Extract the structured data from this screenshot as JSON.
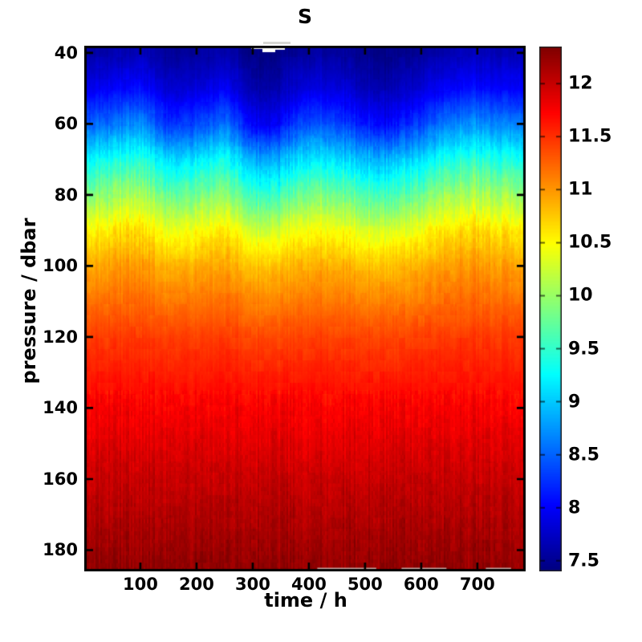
{
  "figure": {
    "title": "S",
    "xlabel": "time / h",
    "ylabel": "pressure / dbar",
    "background": "#ffffff"
  },
  "axes": {
    "xlim": [
      0,
      786
    ],
    "ylim": [
      38,
      186
    ],
    "y_axis_reversed_depth": true,
    "x_ticks": [
      100,
      200,
      300,
      400,
      500,
      600,
      700
    ],
    "y_ticks": [
      40,
      60,
      80,
      100,
      120,
      140,
      160,
      180
    ],
    "tick_direction": "in",
    "box": "on"
  },
  "colorbar": {
    "position": "right",
    "clim": [
      7.4,
      12.35
    ],
    "colormap": "jet",
    "ticks": [
      7.5,
      8,
      8.5,
      9,
      9.5,
      10,
      10.5,
      11,
      11.5,
      12
    ]
  },
  "chart_data": {
    "type": "heatmap",
    "title": "S",
    "xlabel": "time / h",
    "ylabel": "pressure / dbar",
    "legend": "none",
    "grid": "off",
    "colormap": "jet",
    "clim": [
      7.4,
      12.35
    ],
    "x": [
      0,
      50,
      100,
      150,
      200,
      250,
      300,
      340,
      390,
      440,
      490,
      540,
      590,
      640,
      690,
      740,
      786
    ],
    "y": [
      40,
      50,
      60,
      70,
      80,
      90,
      100,
      120,
      140,
      160,
      186
    ],
    "values": [
      [
        7.6,
        7.63,
        7.69,
        7.51,
        7.54,
        7.63,
        7.42,
        7.4,
        7.57,
        7.57,
        7.48,
        7.42,
        7.51,
        7.63,
        7.69,
        7.66,
        7.66
      ],
      [
        7.93,
        7.98,
        8.08,
        7.78,
        7.83,
        7.98,
        7.63,
        7.58,
        7.88,
        7.88,
        7.73,
        7.63,
        7.78,
        7.98,
        8.08,
        8.03,
        8.03
      ],
      [
        8.5,
        8.58,
        8.74,
        8.26,
        8.34,
        8.58,
        8.02,
        7.94,
        8.42,
        8.42,
        8.18,
        8.02,
        8.26,
        8.58,
        8.74,
        8.66,
        8.66
      ],
      [
        9.27,
        9.34,
        9.47,
        9.07,
        9.14,
        9.34,
        8.87,
        8.8,
        9.2,
        9.2,
        9.0,
        8.87,
        9.07,
        9.34,
        9.47,
        9.4,
        9.4
      ],
      [
        9.93,
        9.99,
        10.12,
        9.74,
        9.81,
        9.99,
        9.56,
        9.5,
        9.87,
        9.87,
        9.68,
        9.56,
        9.74,
        9.99,
        10.12,
        10.05,
        10.05
      ],
      [
        10.55,
        10.6,
        10.69,
        10.42,
        10.46,
        10.6,
        10.28,
        10.24,
        10.51,
        10.51,
        10.37,
        10.28,
        10.42,
        10.6,
        10.69,
        10.64,
        10.64
      ],
      [
        10.93,
        10.95,
        11.0,
        10.86,
        10.89,
        10.95,
        10.8,
        10.77,
        10.91,
        10.91,
        10.84,
        10.8,
        10.86,
        10.95,
        11.0,
        10.97,
        10.97
      ],
      [
        11.44,
        11.45,
        11.46,
        11.42,
        11.42,
        11.45,
        11.39,
        11.38,
        11.43,
        11.43,
        11.41,
        11.39,
        11.42,
        11.45,
        11.46,
        11.46,
        11.46
      ],
      [
        11.76,
        11.76,
        11.76,
        11.76,
        11.76,
        11.76,
        11.76,
        11.76,
        11.76,
        11.76,
        11.76,
        11.76,
        11.76,
        11.76,
        11.76,
        11.76,
        11.76
      ],
      [
        12.01,
        12.01,
        12.01,
        12.01,
        12.01,
        12.01,
        12.01,
        12.01,
        12.01,
        12.01,
        12.01,
        12.01,
        12.01,
        12.01,
        12.01,
        12.01,
        12.01
      ],
      [
        12.28,
        12.28,
        12.28,
        12.28,
        12.28,
        12.28,
        12.28,
        12.28,
        12.28,
        12.28,
        12.28,
        12.28,
        12.28,
        12.28,
        12.28,
        12.28,
        12.28
      ]
    ],
    "missing_data": {
      "top_gap_time_range_h": [
        300,
        355
      ],
      "top_gap_pressure_dbar": 40,
      "bottom_faint_gaps_time_h": [
        [
          415,
          520
        ],
        [
          565,
          645
        ],
        [
          715,
          760
        ]
      ]
    }
  }
}
